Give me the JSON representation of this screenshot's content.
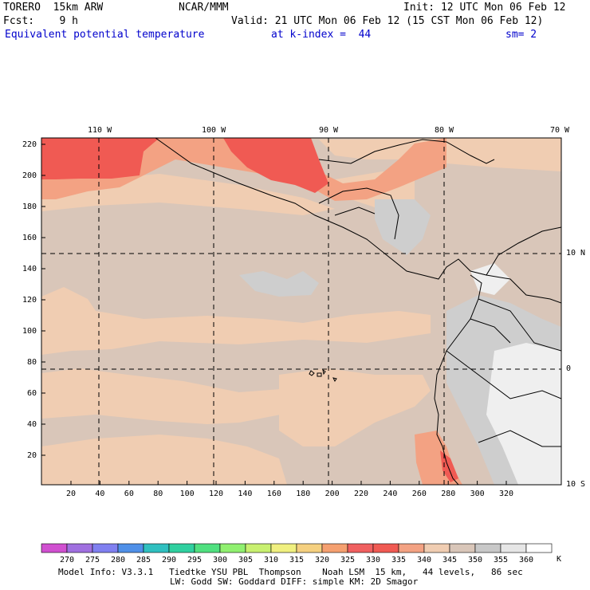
{
  "header": {
    "model": "TORERO  15km ARW",
    "org": "NCAR/MMM",
    "init": "Init: 12 UTC Mon 06 Feb 12",
    "fcst": "Fcst:    9 h",
    "valid": "Valid: 21 UTC Mon 06 Feb 12 (15 CST Mon 06 Feb 12)",
    "field": "Equivalent potential temperature",
    "level": "at k-index =  44",
    "smooth": "sm= 2"
  },
  "map": {
    "top_lon_labels": [
      "110 W",
      "100 W",
      "90 W",
      "80 W",
      "70 W"
    ],
    "right_lat_labels": [
      "10 N",
      "0",
      "10 S"
    ],
    "x_ticks": [
      "20",
      "40",
      "60",
      "80",
      "100",
      "120",
      "140",
      "160",
      "180",
      "200",
      "220",
      "240",
      "260",
      "280",
      "300",
      "320"
    ],
    "y_ticks": [
      "220",
      "200",
      "180",
      "160",
      "140",
      "120",
      "100",
      "80",
      "60",
      "40",
      "20"
    ],
    "colors": {
      "grey_dark": "#b9b9b9",
      "grey_light": "#cecece",
      "pale_white": "#efefef",
      "tan": "#f0cdb2",
      "tan_light": "#f5d8c1",
      "salmon": "#f3a283",
      "red": "#f05a53",
      "tan_grey": "#d9c6b9"
    }
  },
  "colorbar": {
    "labels": [
      "270",
      "275",
      "280",
      "285",
      "290",
      "295",
      "300",
      "305",
      "310",
      "315",
      "320",
      "325",
      "330",
      "335",
      "340",
      "345",
      "350",
      "355",
      "360"
    ],
    "unit": "K",
    "colors": [
      "#d050d0",
      "#a070e0",
      "#8080f0",
      "#5090e8",
      "#30c0c0",
      "#30d0a0",
      "#50e080",
      "#90f070",
      "#c8f070",
      "#f0f080",
      "#f5d080",
      "#f5a070",
      "#f06060",
      "#f05a53",
      "#f3a283",
      "#f0cdb2",
      "#d9c6b9",
      "#c8c8c8",
      "#e6e6e6",
      "#ffffff"
    ]
  },
  "footer": {
    "line1": "Model Info: V3.3.1   Tiedtke YSU PBL  Thompson    Noah LSM  15 km,   44 levels,   86 sec",
    "line2": "LW: Godd SW: Goddard DIFF: simple KM: 2D Smagor"
  }
}
